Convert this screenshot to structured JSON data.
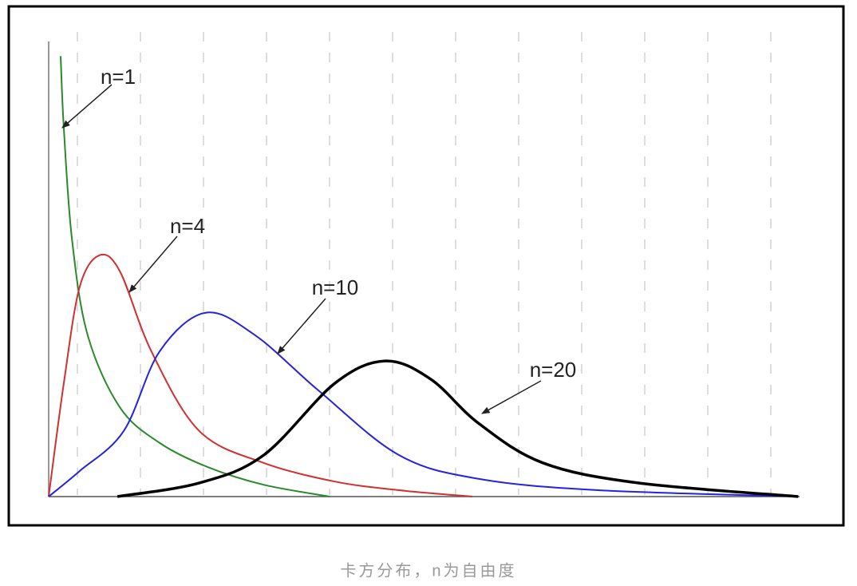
{
  "chart_data": {
    "type": "line",
    "caption": "卡方分布，n为自由度",
    "xlim": [
      0,
      12
    ],
    "ylim": [
      0,
      1
    ],
    "series": [
      {
        "name": "n=1",
        "color": "#2a8a2a",
        "x": [
          0.19,
          0.24,
          0.37,
          0.62,
          1.13,
          1.76,
          2.52,
          3.41,
          4.46
        ],
        "values": [
          0.968,
          0.81,
          0.565,
          0.354,
          0.196,
          0.118,
          0.065,
          0.026,
          0
        ]
      },
      {
        "name": "n=4",
        "color": "#d03030",
        "x": [
          0,
          0.24,
          0.49,
          0.8,
          1.13,
          1.63,
          2.39,
          3.41,
          4.54,
          5.56,
          6.72
        ],
        "values": [
          0,
          0.249,
          0.46,
          0.53,
          0.495,
          0.319,
          0.144,
          0.074,
          0.033,
          0.014,
          0
        ]
      },
      {
        "name": "n=10",
        "color": "#2323e0",
        "x": [
          0,
          0.49,
          1.19,
          1.76,
          2.49,
          3.28,
          4.29,
          5.56,
          6.82,
          8.72,
          11.89
        ],
        "values": [
          0,
          0.056,
          0.144,
          0.319,
          0.404,
          0.354,
          0.232,
          0.091,
          0.039,
          0.014,
          0
        ]
      },
      {
        "name": "n=20",
        "color": "#000000",
        "x": [
          1.09,
          2.39,
          3.41,
          4.54,
          5.34,
          6.06,
          6.82,
          7.84,
          9.35,
          11.89
        ],
        "values": [
          0,
          0.03,
          0.091,
          0.249,
          0.298,
          0.258,
          0.161,
          0.074,
          0.03,
          0
        ]
      }
    ]
  }
}
